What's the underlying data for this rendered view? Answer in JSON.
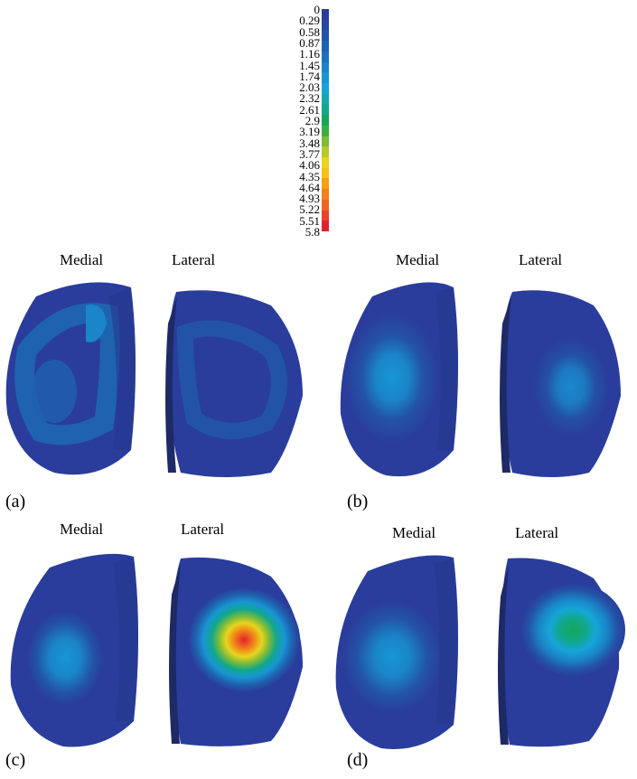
{
  "colorbar": {
    "labels": [
      "0",
      "0.29",
      "0.58",
      "0.87",
      "1.16",
      "1.45",
      "1.74",
      "2.03",
      "2.32",
      "2.61",
      "2.9",
      "3.19",
      "3.48",
      "3.77",
      "4.06",
      "4.35",
      "4.64",
      "4.93",
      "5.22",
      "5.51",
      "5.8"
    ],
    "colors": [
      "#2a3d9c",
      "#27479f",
      "#2353a6",
      "#1f62b0",
      "#1b72bb",
      "#1a85c8",
      "#1796d3",
      "#16a5d8",
      "#13a8b0",
      "#11a78a",
      "#15a65a",
      "#3bae43",
      "#7dbb3a",
      "#b8c92e",
      "#e8d51e",
      "#f7c014",
      "#f6a013",
      "#f2821a",
      "#ee6420",
      "#e8432a",
      "#e22030"
    ]
  },
  "panels": [
    {
      "tag": "(a)",
      "medial": "Medial",
      "lateral": "Lateral"
    },
    {
      "tag": "(b)",
      "medial": "Medial",
      "lateral": "Lateral"
    },
    {
      "tag": "(c)",
      "medial": "Medial",
      "lateral": "Lateral"
    },
    {
      "tag": "(d)",
      "medial": "Medial",
      "lateral": "Lateral"
    }
  ]
}
